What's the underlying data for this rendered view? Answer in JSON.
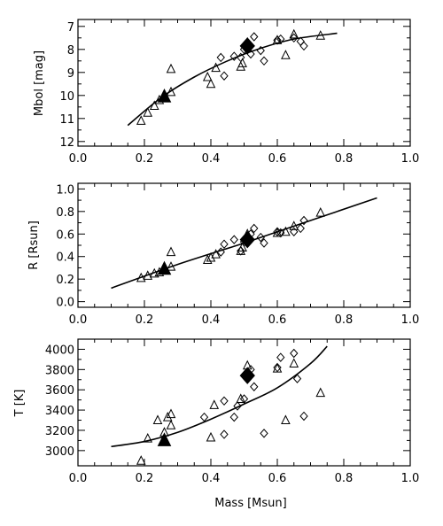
{
  "chart_data": [
    {
      "type": "scatter",
      "ylabel": "Mbol  [mag]",
      "xlabel": "",
      "xlim": [
        0.0,
        1.0
      ],
      "ylim": [
        12.2,
        6.7
      ],
      "y_inverted": true,
      "xticks": [
        "0.0",
        "0.2",
        "0.4",
        "0.6",
        "0.8",
        "1.0"
      ],
      "yticks": [
        "7",
        "8",
        "9",
        "10",
        "11",
        "12"
      ],
      "series": [
        {
          "marker": "open-triangle",
          "points": [
            [
              0.19,
              11.1
            ],
            [
              0.21,
              10.75
            ],
            [
              0.23,
              10.45
            ],
            [
              0.245,
              10.2
            ],
            [
              0.26,
              10.05
            ],
            [
              0.28,
              8.85
            ],
            [
              0.28,
              9.85
            ],
            [
              0.39,
              9.2
            ],
            [
              0.4,
              9.5
            ],
            [
              0.415,
              8.8
            ],
            [
              0.49,
              8.75
            ],
            [
              0.495,
              8.6
            ],
            [
              0.51,
              7.7
            ],
            [
              0.6,
              7.6
            ],
            [
              0.625,
              8.25
            ],
            [
              0.65,
              7.35
            ],
            [
              0.73,
              7.4
            ]
          ]
        },
        {
          "marker": "open-diamond",
          "points": [
            [
              0.43,
              8.35
            ],
            [
              0.44,
              9.15
            ],
            [
              0.47,
              8.3
            ],
            [
              0.49,
              8.35
            ],
            [
              0.5,
              8.0
            ],
            [
              0.52,
              8.2
            ],
            [
              0.53,
              7.45
            ],
            [
              0.55,
              8.05
            ],
            [
              0.56,
              8.5
            ],
            [
              0.6,
              7.6
            ],
            [
              0.61,
              7.55
            ],
            [
              0.65,
              7.5
            ],
            [
              0.67,
              7.65
            ],
            [
              0.68,
              7.85
            ]
          ]
        },
        {
          "marker": "filled-triangle",
          "points": [
            [
              0.26,
              10.05
            ]
          ]
        },
        {
          "marker": "filled-diamond",
          "points": [
            [
              0.51,
              7.85
            ]
          ]
        }
      ],
      "fit_curve": [
        [
          0.15,
          11.3
        ],
        [
          0.25,
          10.1
        ],
        [
          0.35,
          9.2
        ],
        [
          0.45,
          8.5
        ],
        [
          0.55,
          7.95
        ],
        [
          0.65,
          7.55
        ],
        [
          0.78,
          7.3
        ]
      ]
    },
    {
      "type": "scatter",
      "ylabel": "R   [Rsun]",
      "xlabel": "",
      "xlim": [
        0.0,
        1.0
      ],
      "ylim": [
        -0.05,
        1.05
      ],
      "y_inverted": false,
      "xticks": [
        "0.0",
        "0.2",
        "0.4",
        "0.6",
        "0.8",
        "1.0"
      ],
      "yticks": [
        "0.0",
        "0.2",
        "0.4",
        "0.6",
        "0.8",
        "1.0"
      ],
      "series": [
        {
          "marker": "open-triangle",
          "points": [
            [
              0.19,
              0.21
            ],
            [
              0.21,
              0.23
            ],
            [
              0.23,
              0.25
            ],
            [
              0.245,
              0.26
            ],
            [
              0.26,
              0.28
            ],
            [
              0.28,
              0.31
            ],
            [
              0.28,
              0.44
            ],
            [
              0.39,
              0.37
            ],
            [
              0.4,
              0.39
            ],
            [
              0.415,
              0.42
            ],
            [
              0.49,
              0.45
            ],
            [
              0.495,
              0.48
            ],
            [
              0.51,
              0.6
            ],
            [
              0.6,
              0.61
            ],
            [
              0.625,
              0.62
            ],
            [
              0.65,
              0.67
            ],
            [
              0.73,
              0.79
            ]
          ]
        },
        {
          "marker": "open-diamond",
          "points": [
            [
              0.43,
              0.44
            ],
            [
              0.44,
              0.51
            ],
            [
              0.47,
              0.55
            ],
            [
              0.49,
              0.45
            ],
            [
              0.5,
              0.53
            ],
            [
              0.52,
              0.6
            ],
            [
              0.53,
              0.65
            ],
            [
              0.55,
              0.57
            ],
            [
              0.56,
              0.52
            ],
            [
              0.6,
              0.62
            ],
            [
              0.61,
              0.61
            ],
            [
              0.65,
              0.62
            ],
            [
              0.67,
              0.65
            ],
            [
              0.68,
              0.72
            ]
          ]
        },
        {
          "marker": "filled-triangle",
          "points": [
            [
              0.26,
              0.29
            ]
          ]
        },
        {
          "marker": "filled-diamond",
          "points": [
            [
              0.51,
              0.55
            ]
          ]
        }
      ],
      "fit_curve": [
        [
          0.1,
          0.12
        ],
        [
          0.3,
          0.33
        ],
        [
          0.5,
          0.52
        ],
        [
          0.7,
          0.72
        ],
        [
          0.9,
          0.92
        ]
      ]
    },
    {
      "type": "scatter",
      "ylabel": "T   [K]",
      "xlabel": "Mass  [Msun]",
      "xlim": [
        0.0,
        1.0
      ],
      "ylim": [
        2850,
        4100
      ],
      "y_inverted": false,
      "xticks": [
        "0.0",
        "0.2",
        "0.4",
        "0.6",
        "0.8",
        "1.0"
      ],
      "yticks": [
        "3000",
        "3200",
        "3400",
        "3600",
        "3800",
        "4000"
      ],
      "series": [
        {
          "marker": "open-triangle",
          "points": [
            [
              0.19,
              2900
            ],
            [
              0.21,
              3120
            ],
            [
              0.24,
              3300
            ],
            [
              0.26,
              3180
            ],
            [
              0.27,
              3330
            ],
            [
              0.28,
              3250
            ],
            [
              0.28,
              3360
            ],
            [
              0.4,
              3130
            ],
            [
              0.41,
              3450
            ],
            [
              0.49,
              3510
            ],
            [
              0.51,
              3840
            ],
            [
              0.6,
              3810
            ],
            [
              0.625,
              3300
            ],
            [
              0.65,
              3860
            ],
            [
              0.73,
              3570
            ]
          ]
        },
        {
          "marker": "open-diamond",
          "points": [
            [
              0.38,
              3330
            ],
            [
              0.44,
              3490
            ],
            [
              0.44,
              3160
            ],
            [
              0.47,
              3330
            ],
            [
              0.48,
              3440
            ],
            [
              0.5,
              3510
            ],
            [
              0.52,
              3800
            ],
            [
              0.53,
              3630
            ],
            [
              0.56,
              3170
            ],
            [
              0.6,
              3820
            ],
            [
              0.61,
              3920
            ],
            [
              0.65,
              3960
            ],
            [
              0.66,
              3710
            ],
            [
              0.68,
              3340
            ]
          ]
        },
        {
          "marker": "filled-triangle",
          "points": [
            [
              0.26,
              3100
            ]
          ]
        },
        {
          "marker": "filled-diamond",
          "points": [
            [
              0.51,
              3740
            ]
          ]
        }
      ],
      "fit_curve": [
        [
          0.1,
          3040
        ],
        [
          0.2,
          3090
        ],
        [
          0.3,
          3180
        ],
        [
          0.4,
          3310
        ],
        [
          0.5,
          3460
        ],
        [
          0.6,
          3620
        ],
        [
          0.7,
          3860
        ],
        [
          0.75,
          4030
        ]
      ]
    }
  ]
}
